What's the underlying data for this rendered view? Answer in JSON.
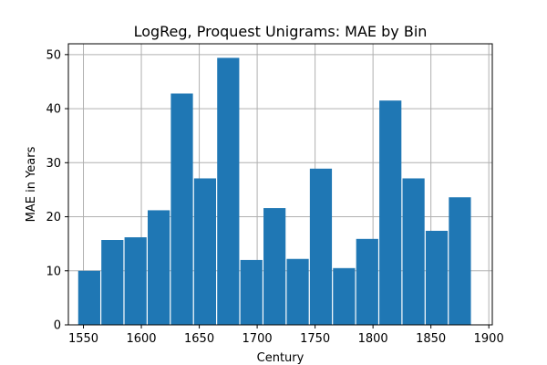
{
  "chart_data": {
    "type": "bar",
    "title": "LogReg, Proquest Unigrams: MAE by Bin",
    "xlabel": "Century",
    "ylabel": "MAE in Years",
    "bin_width": 20,
    "bins": [
      {
        "start": 1545,
        "value": 10.0
      },
      {
        "start": 1565,
        "value": 15.7
      },
      {
        "start": 1585,
        "value": 16.2
      },
      {
        "start": 1605,
        "value": 21.2
      },
      {
        "start": 1625,
        "value": 42.8
      },
      {
        "start": 1645,
        "value": 27.1
      },
      {
        "start": 1665,
        "value": 49.4
      },
      {
        "start": 1685,
        "value": 12.0
      },
      {
        "start": 1705,
        "value": 21.6
      },
      {
        "start": 1725,
        "value": 12.2
      },
      {
        "start": 1745,
        "value": 28.9
      },
      {
        "start": 1765,
        "value": 10.5
      },
      {
        "start": 1785,
        "value": 15.9
      },
      {
        "start": 1805,
        "value": 41.5
      },
      {
        "start": 1825,
        "value": 27.1
      },
      {
        "start": 1845,
        "value": 17.4
      },
      {
        "start": 1865,
        "value": 23.6
      }
    ],
    "xlim": [
      1537,
      1903
    ],
    "ylim": [
      0,
      52
    ],
    "xticks": [
      1550,
      1600,
      1650,
      1700,
      1750,
      1800,
      1850,
      1900
    ],
    "yticks": [
      0,
      10,
      20,
      30,
      40,
      50
    ],
    "grid": true,
    "bar_color": "#1f77b4",
    "grid_color": "#b0b0b0"
  }
}
